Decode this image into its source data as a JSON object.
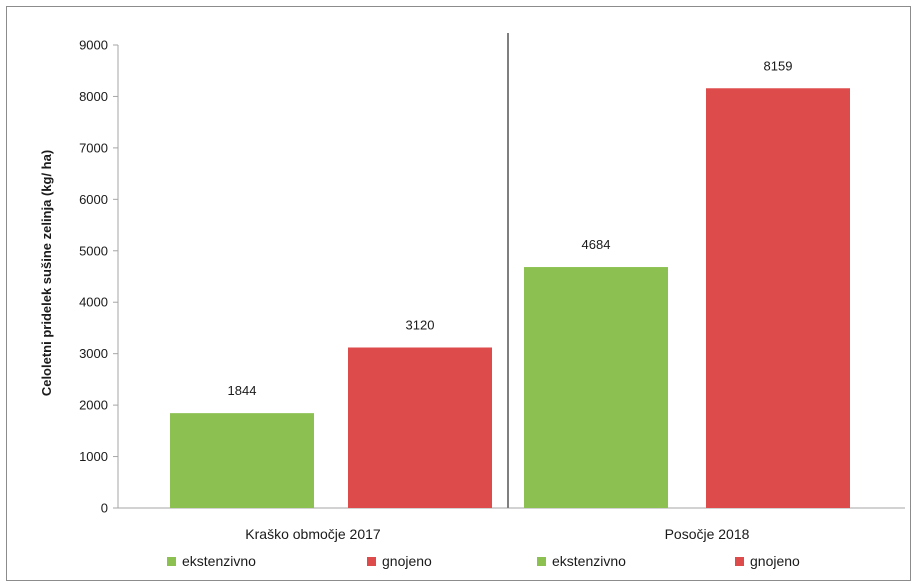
{
  "chart_data": {
    "type": "bar",
    "ylabel": "Celoletni pridelek sušine zelinja (kg/ ha)",
    "ylim": [
      0,
      9000
    ],
    "y_ticks": [
      "0",
      "1000",
      "2000",
      "3000",
      "4000",
      "5000",
      "6000",
      "7000",
      "8000",
      "9000"
    ],
    "grid": false,
    "legend_position": "bottom",
    "groups": [
      {
        "category": "Kraško območje 2017",
        "bars": [
          {
            "series": "ekstenzivno",
            "value": 1844,
            "label": "1844",
            "color": "#8cc152"
          },
          {
            "series": "gnojeno",
            "value": 3120,
            "label": "3120",
            "color": "#dd4b4b"
          }
        ]
      },
      {
        "category": "Posočje 2018",
        "bars": [
          {
            "series": "ekstenzivno",
            "value": 4684,
            "label": "4684",
            "color": "#8cc152"
          },
          {
            "series": "gnojeno",
            "value": 8159,
            "label": "8159",
            "color": "#dd4b4b"
          }
        ]
      }
    ],
    "legend": [
      {
        "label": "ekstenzivno",
        "color": "#8cc152"
      },
      {
        "label": "gnojeno",
        "color": "#dd4b4b"
      },
      {
        "label": "ekstenzivno",
        "color": "#8cc152"
      },
      {
        "label": "gnojeno",
        "color": "#dd4b4b"
      }
    ],
    "colors": {
      "axis": "#a6a6a6",
      "separator": "#7f7f7f"
    }
  }
}
